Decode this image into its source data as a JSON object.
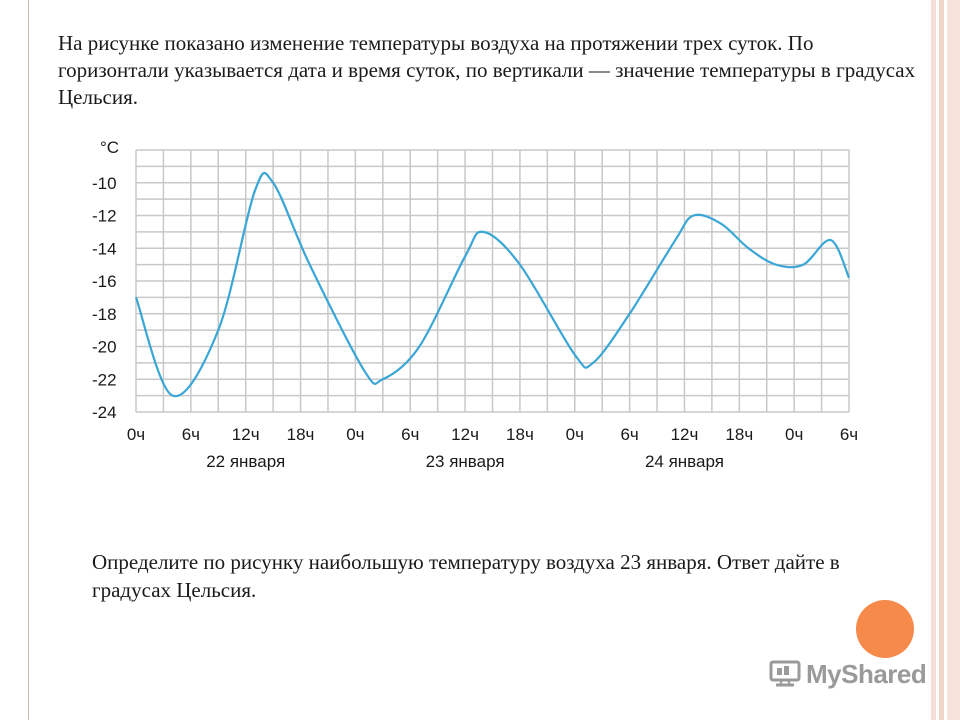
{
  "intro_text": "На рисунке показано изменение температуры воздуха на протяжении трех суток. По горизонтали указывается дата и время суток, по вертикали — значение температуры в градусах Цельсия.",
  "question_text": "Определите по рисунку наибольшую температуру воздуха 23 января. Ответ дайте в градусах Цельсия.",
  "logo": {
    "text": "MyShared",
    "icon": "myshared-logo-icon"
  },
  "colors": {
    "line": "#3aa6d6",
    "grid": "#c8c8c8",
    "accent": "#f58a4a"
  },
  "chart_data": {
    "type": "line",
    "unit_label": "°C",
    "ylim": [
      -24,
      -8
    ],
    "y_ticks": [
      -10,
      -12,
      -14,
      -16,
      -18,
      -20,
      -22,
      -24
    ],
    "y_tick_labels": [
      "-10",
      "-12",
      "-14",
      "-16",
      "-18",
      "-20",
      "-22",
      "-24"
    ],
    "x_range_hours": [
      0,
      78
    ],
    "x_tick_labels": [
      "0ч",
      "6ч",
      "12ч",
      "18ч",
      "0ч",
      "6ч",
      "12ч",
      "18ч",
      "0ч",
      "6ч",
      "12ч",
      "18ч",
      "0ч",
      "6ч"
    ],
    "date_labels": [
      "22 января",
      "23 января",
      "24 января"
    ],
    "grid": true,
    "series": [
      {
        "x_hours": [
          0,
          4,
          9,
          13,
          15,
          19,
          25,
          27,
          31,
          36,
          38,
          42,
          48,
          50,
          54,
          59,
          61,
          64,
          67,
          70,
          73,
          76,
          78
        ],
        "values": [
          -17,
          -23,
          -19,
          -10.5,
          -10,
          -15,
          -21.5,
          -22,
          -20,
          -14.5,
          -13,
          -15,
          -20.5,
          -21,
          -18,
          -13.5,
          -12,
          -12.5,
          -14,
          -15,
          -15,
          -13.5,
          -15.8
        ]
      }
    ]
  }
}
